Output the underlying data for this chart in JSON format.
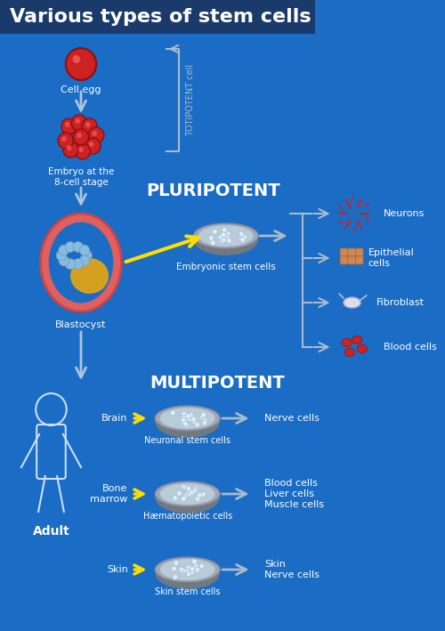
{
  "title": "Various types of stem cells",
  "title_bg_color": "#1a3a6b",
  "bg_color": "#1a6cc4",
  "title_color": "#ffffff",
  "arrow_color": "#b0c4de",
  "yellow_arrow_color": "#ffff00",
  "text_color": "#ffffff",
  "dark_text_color": "#ffffff",
  "pluripotent_label": "PLURIPOTENT",
  "multipotent_label": "MULTIPOTENT",
  "totipotent_label": "TOTIPOTENT cell",
  "cell_egg_label": "Cell egg",
  "embryo_label": "Embryo at the\n8-cell stage",
  "blastocyst_label": "Blastocyst",
  "embryonic_label": "Embryonic stem cells",
  "adult_label": "Adult",
  "neurons_label": "Neurons",
  "epithelial_label": "Epithelial\ncells",
  "fibroblast_label": "Fibroblast",
  "blood_cells_label": "Blood cells",
  "brain_label": "Brain",
  "neuronal_label": "Neuronal stem cells",
  "nerve_cells_label": "Nerve cells",
  "bone_marrow_label": "Bone\nmarrow",
  "haematopoietic_label": "Hæmatopoietic cells",
  "blood_liver_muscle_label": "Blood cells\nLiver cells\nMuscle cells",
  "skin_label": "Skin",
  "skin_stem_label": "Skin stem cells",
  "skin_nerve_label": "Skin\nNerve cells"
}
